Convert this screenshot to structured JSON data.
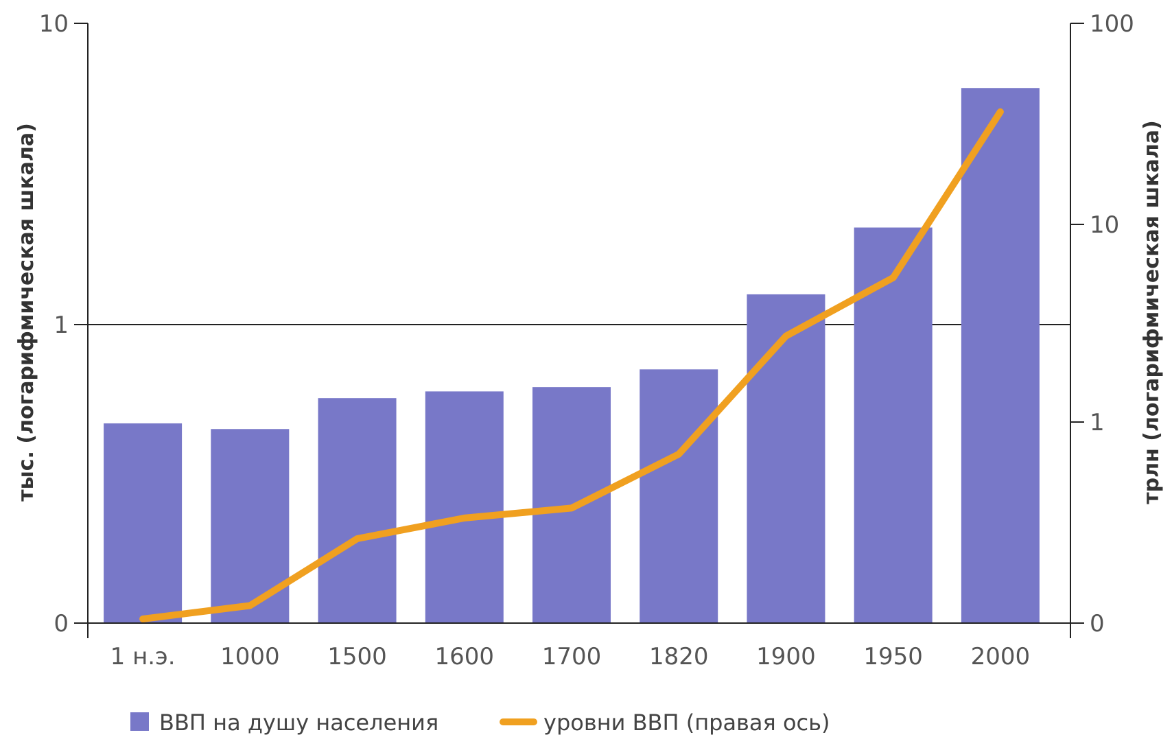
{
  "chart_data": {
    "type": "bar",
    "title": "",
    "xlabel": "",
    "categories": [
      "1 н.э.",
      "1000",
      "1500",
      "1600",
      "1700",
      "1820",
      "1900",
      "1950",
      "2000"
    ],
    "y_left": {
      "label": "тыс. (логарифмическая шкала)",
      "scale": "log",
      "ticks": [
        "0",
        "1",
        "10"
      ]
    },
    "y_right": {
      "label": "трлн (логарифмическая шкала)",
      "scale": "log",
      "ticks": [
        "0",
        "1",
        "10",
        "100"
      ]
    },
    "series": [
      {
        "name": "ВВП на душу населения",
        "type": "bar",
        "axis": "left",
        "color": "#7878c8",
        "values": [
          0.47,
          0.45,
          0.57,
          0.6,
          0.62,
          0.71,
          1.26,
          2.1,
          6.1
        ]
      },
      {
        "name": "уровни ВВП (правая ось)",
        "type": "line",
        "axis": "right",
        "color": "#f0a020",
        "values": [
          0.1,
          0.12,
          0.26,
          0.33,
          0.37,
          0.69,
          2.7,
          5.3,
          36
        ]
      }
    ],
    "legend": {
      "placement": "bottom-left"
    },
    "grid": false
  }
}
